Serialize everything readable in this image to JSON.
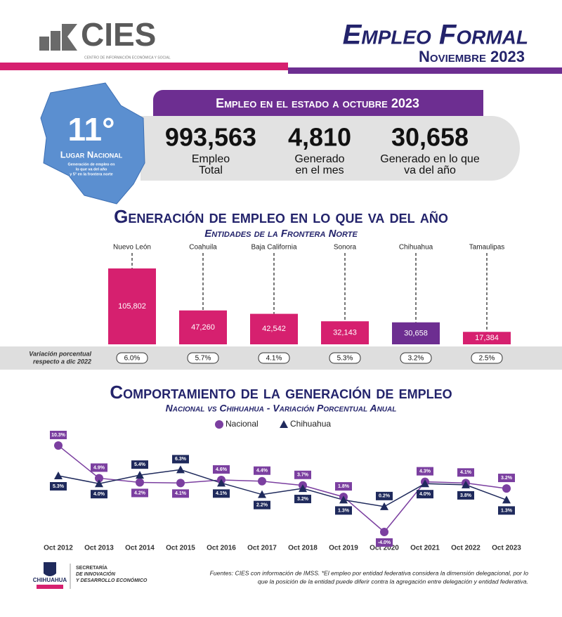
{
  "header": {
    "logo": "CIES",
    "logo_subtitle": "CENTRO DE INFORMACIÓN ECONÓMICA Y SOCIAL",
    "title": "Empleo Formal",
    "subtitle": "Noviembre 2023"
  },
  "state": {
    "banner": "Empleo en el estado a octubre 2023",
    "rank": "11°",
    "rank_label": "Lugar Nacional",
    "rank_note": [
      "Generación de empleo en",
      "lo que va del año",
      "y 5° en la frontera norte"
    ],
    "stats": [
      {
        "value": "993,563",
        "label": [
          "Empleo",
          "Total"
        ]
      },
      {
        "value": "4,810",
        "label": [
          "Generado",
          "en el mes"
        ]
      },
      {
        "value": "30,658",
        "label": [
          "Generado en lo que",
          "va del año"
        ]
      }
    ]
  },
  "chart_data": [
    {
      "type": "bar",
      "title": "Generación de empleo en lo que va del año",
      "subtitle": "Entidades de la Frontera Norte",
      "categories": [
        "Nuevo León",
        "Coahuila",
        "Baja California",
        "Sonora",
        "Chihuahua",
        "Tamaulipas"
      ],
      "values": [
        105802,
        47260,
        42542,
        32143,
        30658,
        17384
      ],
      "value_labels": [
        "105,802",
        "47,260",
        "42,542",
        "32,143",
        "30,658",
        "17,384"
      ],
      "colors": [
        "#d6206f",
        "#d6206f",
        "#d6206f",
        "#d6206f",
        "#6d2e91",
        "#d6206f"
      ],
      "variation_label": [
        "Variación porcentual",
        "respecto a dic 2022"
      ],
      "variation": [
        "6.0%",
        "5.7%",
        "4.1%",
        "5.3%",
        "3.2%",
        "2.5%"
      ]
    },
    {
      "type": "line",
      "title": "Comportamiento de la generación de empleo",
      "subtitle": "Nacional vs Chihuahua - Variación Porcentual Anual",
      "categories": [
        "Oct 2012",
        "Oct 2013",
        "Oct 2014",
        "Oct 2015",
        "Oct 2016",
        "Oct 2017",
        "Oct 2018",
        "Oct 2019",
        "Oct 2020",
        "Oct 2021",
        "Oct 2022",
        "Oct 2023"
      ],
      "legend": "top",
      "series": [
        {
          "name": "Nacional",
          "color": "#7b3fa0",
          "marker": "circle",
          "values": [
            10.3,
            4.9,
            4.2,
            4.1,
            4.6,
            4.4,
            3.7,
            1.8,
            -4.0,
            4.3,
            4.1,
            3.2
          ],
          "value_labels": [
            "10.3%",
            "4.9%",
            "4.2%",
            "4.1%",
            "4.6%",
            "4.4%",
            "3.7%",
            "1.8%",
            "-4.0%",
            "4.3%",
            "4.1%",
            "3.2%"
          ]
        },
        {
          "name": "Chihuahua",
          "color": "#1f2a5c",
          "marker": "triangle",
          "values": [
            5.3,
            4.0,
            5.4,
            6.3,
            4.1,
            2.2,
            3.2,
            1.3,
            0.2,
            4.0,
            3.8,
            1.3
          ],
          "value_labels": [
            "5.3%",
            "4.0%",
            "5.4%",
            "6.3%",
            "4.1%",
            "2.2%",
            "3.2%",
            "1.3%",
            "0.2%",
            "4.0%",
            "3.8%",
            "1.3%"
          ]
        }
      ]
    }
  ],
  "footer": {
    "logo": "CHIHUAHUA",
    "secretaria": [
      "SECRETARÍA",
      "DE INNOVACIÓN",
      "Y DESARROLLO ECONÓMICO"
    ],
    "source": [
      "Fuentes: CIES con información de IMSS. *El empleo por entidad federativa considera la dimensión delegacional, por lo",
      "que la posición de la entidad puede diferir contra la agregación entre delegación y entidad federativa."
    ]
  }
}
